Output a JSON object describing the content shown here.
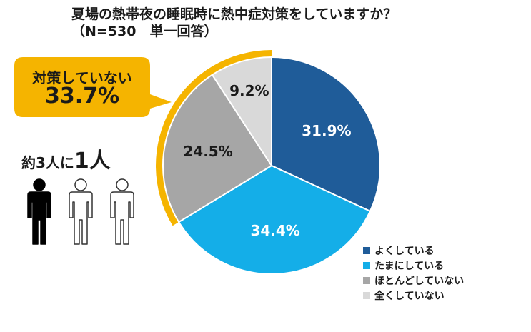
{
  "chart_data": {
    "type": "pie",
    "title": "夏場の熱帯夜の睡眠時に熱中症対策をしていますか？",
    "subtitle": "（N=530　単一回答）",
    "categories": [
      "よくしている",
      "たまにしている",
      "ほとんどしていない",
      "全くしていない"
    ],
    "values": [
      31.9,
      34.4,
      24.5,
      9.2
    ],
    "value_labels": [
      "31.9%",
      "34.4%",
      "24.5%",
      "9.2%"
    ],
    "colors": [
      "#1f5c99",
      "#14aee8",
      "#a6a6a6",
      "#d9d9d9"
    ],
    "label_colors": [
      "#ffffff",
      "#ffffff",
      "#1a1a1a",
      "#1a1a1a"
    ],
    "legend_position": "bottom-right",
    "highlight": {
      "label": "対策していない",
      "value": "33.7%",
      "color": "#f5b400",
      "covers_categories": [
        "ほとんどしていない",
        "全くしていない"
      ]
    }
  },
  "ratio": {
    "prefix": "約3人に",
    "emphasis": "1人",
    "total_people": 3,
    "highlighted_people": 1,
    "person_colors": {
      "highlighted": "#000000",
      "outline": "#333333"
    }
  }
}
